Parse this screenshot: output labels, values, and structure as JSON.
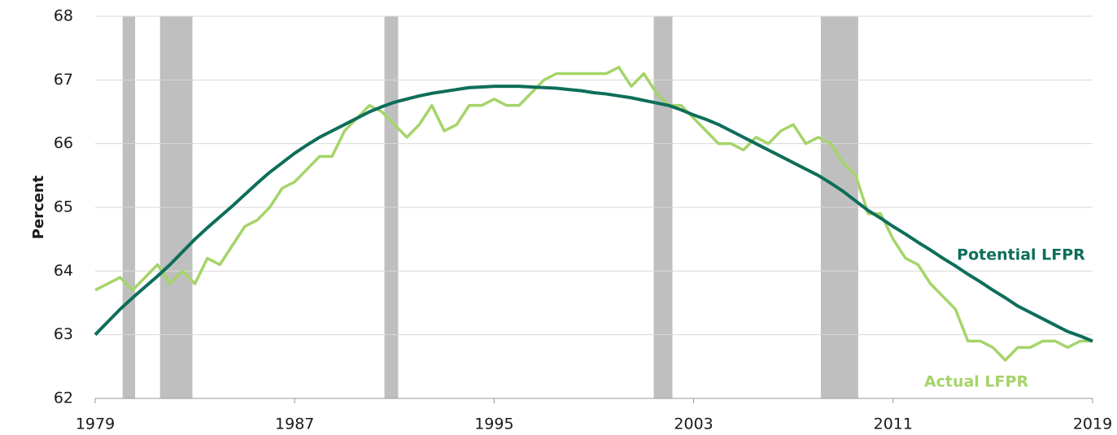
{
  "chart_data": {
    "type": "line",
    "y_label": "Percent",
    "x": [
      1979,
      1979.5,
      1980,
      1980.5,
      1981,
      1981.5,
      1982,
      1982.5,
      1983,
      1983.5,
      1984,
      1984.5,
      1985,
      1985.5,
      1986,
      1986.5,
      1987,
      1987.5,
      1988,
      1988.5,
      1989,
      1989.5,
      1990,
      1990.5,
      1991,
      1991.5,
      1992,
      1992.5,
      1993,
      1993.5,
      1994,
      1994.5,
      1995,
      1995.5,
      1996,
      1996.5,
      1997,
      1997.5,
      1998,
      1998.5,
      1999,
      1999.5,
      2000,
      2000.5,
      2001,
      2001.5,
      2002,
      2002.5,
      2003,
      2003.5,
      2004,
      2004.5,
      2005,
      2005.5,
      2006,
      2006.5,
      2007,
      2007.5,
      2008,
      2008.5,
      2009,
      2009.5,
      2010,
      2010.5,
      2011,
      2011.5,
      2012,
      2012.5,
      2013,
      2013.5,
      2014,
      2014.5,
      2015,
      2015.5,
      2016,
      2016.5,
      2017,
      2017.5,
      2018,
      2018.5,
      2019
    ],
    "series": [
      {
        "name": "Actual LFPR",
        "color": "#a5d469",
        "values": [
          63.7,
          63.8,
          63.9,
          63.7,
          63.9,
          64.1,
          63.8,
          64.0,
          63.8,
          64.2,
          64.1,
          64.4,
          64.7,
          64.8,
          65.0,
          65.3,
          65.4,
          65.6,
          65.8,
          65.8,
          66.2,
          66.4,
          66.6,
          66.5,
          66.3,
          66.1,
          66.3,
          66.6,
          66.2,
          66.3,
          66.6,
          66.6,
          66.7,
          66.6,
          66.6,
          66.8,
          67.0,
          67.1,
          67.1,
          67.1,
          67.1,
          67.1,
          67.2,
          66.9,
          67.1,
          66.8,
          66.6,
          66.6,
          66.4,
          66.2,
          66.0,
          66.0,
          65.9,
          66.1,
          66.0,
          66.2,
          66.3,
          66.0,
          66.1,
          66.0,
          65.7,
          65.5,
          64.9,
          64.9,
          64.5,
          64.2,
          64.1,
          63.8,
          63.6,
          63.4,
          62.9,
          62.9,
          62.8,
          62.6,
          62.8,
          62.8,
          62.9,
          62.9,
          62.8,
          62.9,
          62.9
        ]
      },
      {
        "name": "Potential LFPR",
        "color": "#0d6e5a",
        "values": [
          63.0,
          63.2,
          63.4,
          63.58,
          63.75,
          63.92,
          64.1,
          64.3,
          64.5,
          64.68,
          64.85,
          65.02,
          65.2,
          65.38,
          65.55,
          65.7,
          65.85,
          65.98,
          66.1,
          66.2,
          66.3,
          66.4,
          66.5,
          66.58,
          66.65,
          66.7,
          66.75,
          66.79,
          66.82,
          66.85,
          66.88,
          66.89,
          66.9,
          66.9,
          66.9,
          66.89,
          66.88,
          66.87,
          66.85,
          66.83,
          66.8,
          66.78,
          66.75,
          66.72,
          66.68,
          66.64,
          66.6,
          66.53,
          66.45,
          66.38,
          66.3,
          66.2,
          66.1,
          66.0,
          65.9,
          65.8,
          65.7,
          65.6,
          65.5,
          65.38,
          65.25,
          65.1,
          64.95,
          64.83,
          64.7,
          64.58,
          64.45,
          64.33,
          64.2,
          64.08,
          63.95,
          63.83,
          63.7,
          63.58,
          63.45,
          63.35,
          63.25,
          63.15,
          63.05,
          62.98,
          62.9
        ]
      }
    ],
    "recessions": [
      [
        1980.1,
        1980.6
      ],
      [
        1981.6,
        1982.9
      ],
      [
        1990.6,
        1991.15
      ],
      [
        2001.4,
        2002.15
      ],
      [
        2008.1,
        2009.6
      ]
    ],
    "recession_color": "#bfbfbf",
    "xlim": [
      1979,
      2019
    ],
    "xticks": [
      1979,
      1987,
      1995,
      2003,
      2011,
      2019
    ],
    "ylim": [
      62,
      68
    ],
    "yticks": [
      62,
      63,
      64,
      65,
      66,
      67,
      68
    ],
    "grid": true
  }
}
